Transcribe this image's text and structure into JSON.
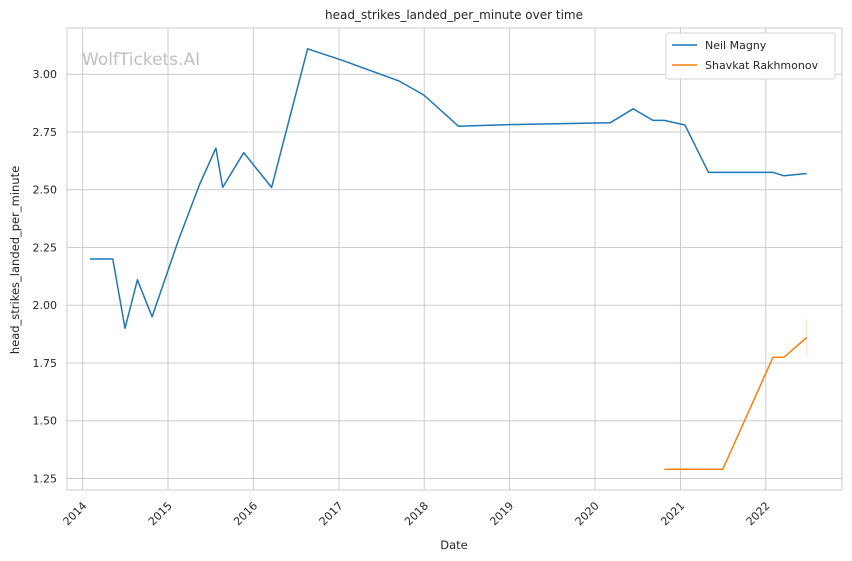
{
  "chart_data": {
    "type": "line",
    "title": "head_strikes_landed_per_minute over time",
    "xlabel": "Date",
    "ylabel": "head_strikes_landed_per_minute",
    "watermark": "WolfTickets.AI",
    "x_ticks": [
      "2014",
      "2015",
      "2016",
      "2017",
      "2018",
      "2019",
      "2020",
      "2021",
      "2022"
    ],
    "y_ticks": [
      "1.25",
      "1.50",
      "1.75",
      "2.00",
      "2.25",
      "2.50",
      "2.75",
      "3.00"
    ],
    "ylim": [
      1.2,
      3.2
    ],
    "xlim": [
      "2013-10-26",
      "2022-11-23"
    ],
    "grid": true,
    "legend_position": "top-right",
    "series": [
      {
        "name": "Neil Magny",
        "color": "#1f77b4",
        "points": [
          [
            "2014-02-01",
            2.2
          ],
          [
            "2014-05-10",
            2.2
          ],
          [
            "2014-07-01",
            1.9
          ],
          [
            "2014-08-23",
            2.11
          ],
          [
            "2014-10-25",
            1.95
          ],
          [
            "2015-02-14",
            2.28
          ],
          [
            "2015-05-15",
            2.52
          ],
          [
            "2015-07-25",
            2.68
          ],
          [
            "2015-08-23",
            2.51
          ],
          [
            "2015-11-21",
            2.66
          ],
          [
            "2016-03-19",
            2.51
          ],
          [
            "2016-08-20",
            3.11
          ],
          [
            "2017-01-15",
            3.06
          ],
          [
            "2017-09-16",
            2.97
          ],
          [
            "2017-12-30",
            2.91
          ],
          [
            "2018-05-27",
            2.775
          ],
          [
            "2019-01-01",
            2.782
          ],
          [
            "2020-03-07",
            2.79
          ],
          [
            "2020-06-13",
            2.85
          ],
          [
            "2020-09-05",
            2.8
          ],
          [
            "2020-10-24",
            2.8
          ],
          [
            "2021-01-20",
            2.78
          ],
          [
            "2021-05-01",
            2.575
          ],
          [
            "2022-01-01",
            2.575
          ],
          [
            "2022-02-01",
            2.575
          ],
          [
            "2022-03-20",
            2.56
          ],
          [
            "2022-06-25",
            2.57
          ]
        ]
      },
      {
        "name": "Shavkat Rakhmonov",
        "color": "#ff7f0e",
        "points": [
          [
            "2020-10-24",
            1.29
          ],
          [
            "2021-07-01",
            1.29
          ],
          [
            "2022-02-01",
            1.775
          ],
          [
            "2022-03-20",
            1.775
          ],
          [
            "2022-06-25",
            1.86
          ]
        ],
        "error_bar": {
          "x": "2022-06-25",
          "low": 1.78,
          "high": 1.94
        }
      }
    ]
  }
}
